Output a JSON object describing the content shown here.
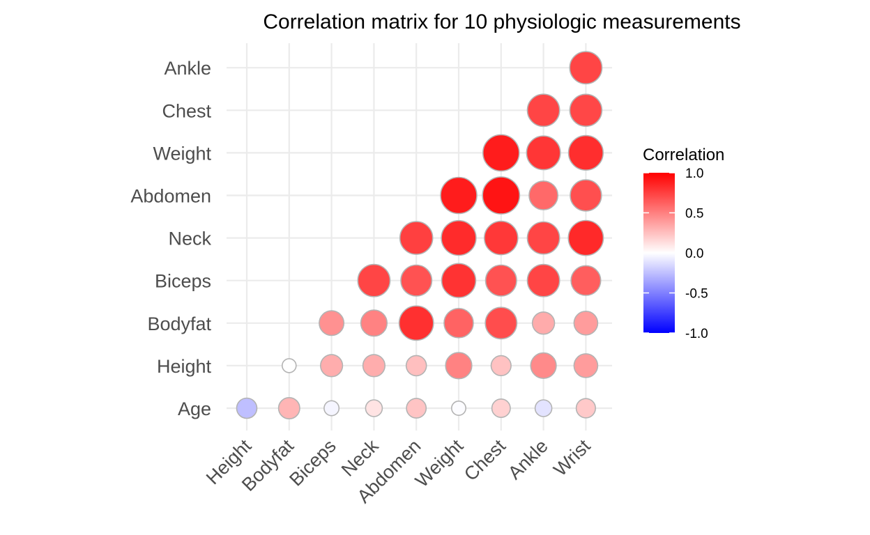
{
  "chart_data": {
    "type": "heatmap",
    "style": "circle",
    "title": "Correlation matrix for 10 physiologic measurements",
    "x_categories": [
      "Height",
      "Bodyfat",
      "Biceps",
      "Neck",
      "Abdomen",
      "Weight",
      "Chest",
      "Ankle",
      "Wrist"
    ],
    "y_categories": [
      "Age",
      "Height",
      "Bodyfat",
      "Biceps",
      "Neck",
      "Abdomen",
      "Weight",
      "Chest",
      "Ankle"
    ],
    "matrix": [
      [
        -0.25,
        0.29,
        -0.04,
        0.11,
        0.23,
        -0.01,
        0.18,
        -0.11,
        0.21
      ],
      [
        null,
        0.0,
        0.32,
        0.32,
        0.25,
        0.49,
        0.24,
        0.46,
        0.39
      ],
      [
        null,
        null,
        0.43,
        0.49,
        0.81,
        0.61,
        0.7,
        0.33,
        0.39
      ],
      [
        null,
        null,
        null,
        0.73,
        0.68,
        0.8,
        0.68,
        0.73,
        0.63
      ],
      [
        null,
        null,
        null,
        null,
        0.75,
        0.83,
        0.78,
        0.73,
        0.84
      ],
      [
        null,
        null,
        null,
        null,
        null,
        0.89,
        0.92,
        0.59,
        0.69
      ],
      [
        null,
        null,
        null,
        null,
        null,
        null,
        0.89,
        0.79,
        0.82
      ],
      [
        null,
        null,
        null,
        null,
        null,
        null,
        null,
        0.73,
        0.72
      ],
      [
        null,
        null,
        null,
        null,
        null,
        null,
        null,
        null,
        0.73
      ]
    ],
    "legend": {
      "title": "Correlation",
      "ticks": [
        "1.0",
        "0.5",
        "0.0",
        "-0.5",
        "-1.0"
      ],
      "tick_values": [
        1.0,
        0.5,
        0.0,
        -0.5,
        -1.0
      ],
      "range": [
        -1,
        1
      ],
      "colors": {
        "low": "#0000ff",
        "mid": "#ffffff",
        "high": "#ff0000"
      },
      "placement": "right"
    },
    "grid": true
  }
}
